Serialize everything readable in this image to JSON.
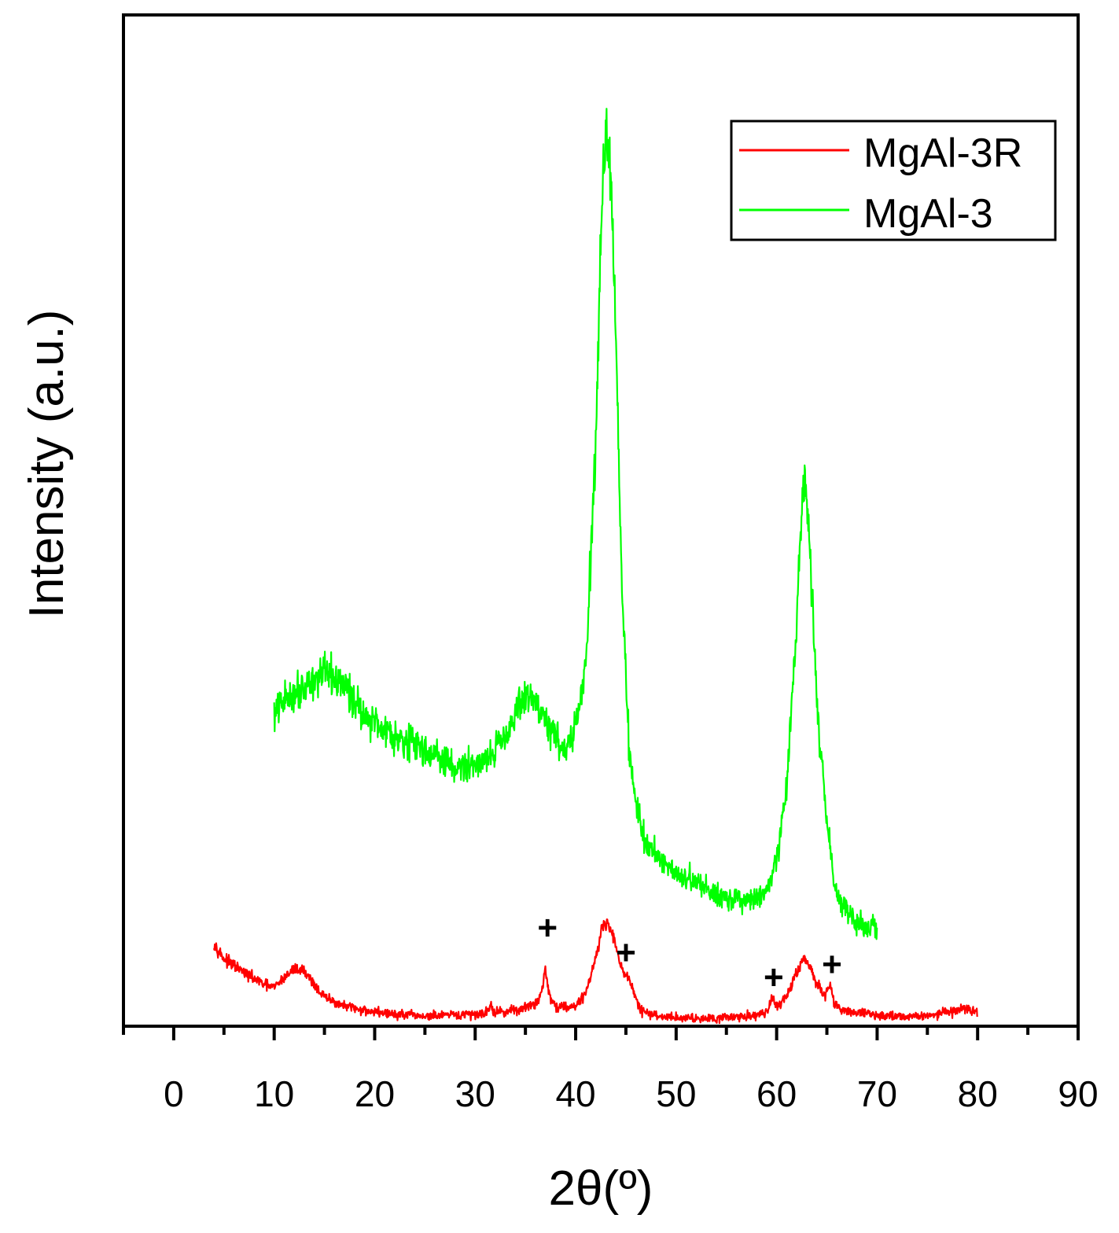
{
  "chart_data": {
    "type": "line",
    "title": "",
    "xlabel": "2θ(º)",
    "ylabel": "Intensity (a.u.)",
    "xlim": [
      -5,
      90
    ],
    "ylim": [
      0,
      100
    ],
    "x_ticks": [
      0,
      10,
      20,
      30,
      40,
      50,
      60,
      70,
      80,
      90
    ],
    "y_ticks_shown": false,
    "grid": false,
    "legend": {
      "position": "top-right",
      "entries": [
        "MgAl-3R",
        "MgAl-3"
      ]
    },
    "series": [
      {
        "name": "MgAl-3R",
        "color": "#ff0000",
        "x_range": [
          4,
          80
        ],
        "points": [
          [
            4,
            8
          ],
          [
            5,
            6.4
          ],
          [
            7,
            5
          ],
          [
            9,
            3.8
          ],
          [
            10,
            3.5
          ],
          [
            11,
            4.5
          ],
          [
            12,
            5.4
          ],
          [
            13,
            5.2
          ],
          [
            14,
            3.8
          ],
          [
            15,
            2.5
          ],
          [
            17,
            1.6
          ],
          [
            19,
            1.2
          ],
          [
            22,
            0.8
          ],
          [
            25,
            0.6
          ],
          [
            28,
            0.7
          ],
          [
            30,
            0.8
          ],
          [
            31,
            1
          ],
          [
            31.5,
            1.6
          ],
          [
            32,
            1
          ],
          [
            34,
            1.2
          ],
          [
            36,
            1.8
          ],
          [
            36.6,
            3
          ],
          [
            37,
            5.5
          ],
          [
            37.4,
            2.6
          ],
          [
            38,
            1.6
          ],
          [
            40,
            1.6
          ],
          [
            41,
            3
          ],
          [
            42,
            6.5
          ],
          [
            42.6,
            9.5
          ],
          [
            43,
            10
          ],
          [
            43.6,
            9.2
          ],
          [
            44.2,
            7
          ],
          [
            44.7,
            5
          ],
          [
            45.3,
            4.5
          ],
          [
            45.8,
            2.8
          ],
          [
            46.5,
            1.2
          ],
          [
            48,
            0.6
          ],
          [
            52,
            0.4
          ],
          [
            57,
            0.6
          ],
          [
            59,
            1
          ],
          [
            59.6,
            2.4
          ],
          [
            60,
            1.6
          ],
          [
            61,
            2.6
          ],
          [
            62,
            5
          ],
          [
            62.6,
            6.5
          ],
          [
            63.2,
            5.8
          ],
          [
            64,
            3.8
          ],
          [
            64.8,
            2.8
          ],
          [
            65.3,
            3.8
          ],
          [
            65.7,
            2
          ],
          [
            66.5,
            1.2
          ],
          [
            70,
            0.7
          ],
          [
            74,
            0.6
          ],
          [
            77,
            1
          ],
          [
            79,
            1.4
          ],
          [
            80,
            0.9
          ]
        ],
        "noise": 0.8
      },
      {
        "name": "MgAl-3",
        "color": "#00ff00",
        "x_range": [
          10,
          70
        ],
        "points": [
          [
            10,
            31
          ],
          [
            11,
            32.5
          ],
          [
            13,
            34
          ],
          [
            15,
            35.2
          ],
          [
            17,
            34
          ],
          [
            19,
            31
          ],
          [
            22,
            29
          ],
          [
            25,
            27.6
          ],
          [
            28,
            25.6
          ],
          [
            30,
            26
          ],
          [
            32,
            27.5
          ],
          [
            34,
            31
          ],
          [
            35,
            33
          ],
          [
            36,
            32.5
          ],
          [
            37.5,
            29.5
          ],
          [
            39,
            27.5
          ],
          [
            40,
            29.5
          ],
          [
            41,
            36
          ],
          [
            42,
            58
          ],
          [
            42.5,
            78
          ],
          [
            43,
            91
          ],
          [
            43.5,
            86
          ],
          [
            44,
            70
          ],
          [
            44.6,
            44
          ],
          [
            45.3,
            28
          ],
          [
            46,
            22
          ],
          [
            47,
            18
          ],
          [
            49,
            16
          ],
          [
            51,
            14.5
          ],
          [
            54,
            13
          ],
          [
            57,
            12
          ],
          [
            59,
            13
          ],
          [
            60,
            16
          ],
          [
            61,
            24
          ],
          [
            62,
            40
          ],
          [
            62.5,
            52
          ],
          [
            62.8,
            55
          ],
          [
            63.3,
            48
          ],
          [
            64,
            32
          ],
          [
            65,
            20
          ],
          [
            66,
            13
          ],
          [
            68,
            10
          ],
          [
            69,
            9.8
          ],
          [
            70,
            9
          ]
        ],
        "noise": 1.6
      }
    ],
    "annotations": [
      {
        "text": "+",
        "x": 37.2,
        "y": 9.5
      },
      {
        "text": "+",
        "x": 45,
        "y": 7
      },
      {
        "text": "+",
        "x": 59.7,
        "y": 4.5
      },
      {
        "text": "+",
        "x": 65.5,
        "y": 5.8
      }
    ]
  }
}
